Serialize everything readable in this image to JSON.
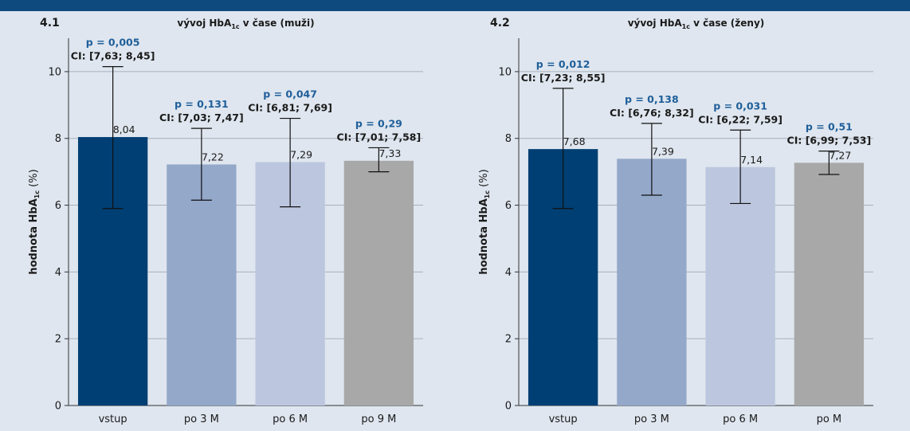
{
  "colors": {
    "background": "#dfe6ef",
    "header": "#0f4a7e",
    "p_value": "#1f5f9a",
    "grid": "#a8b0ba",
    "bars": [
      "#003f73",
      "#94a8c9",
      "#bcc7df",
      "#a8a8a8"
    ]
  },
  "chart_data": [
    {
      "type": "bar",
      "panel_id": "4.1",
      "title_main": "vývoj HbA",
      "title_sub": "1c",
      "title_rest": " v čase (muži)",
      "ylabel_main": "hodnota HbA",
      "ylabel_sub": "1c",
      "ylabel_unit": " (%)",
      "ylim": [
        0,
        11
      ],
      "yticks": [
        0,
        2,
        4,
        6,
        8,
        10
      ],
      "grid": true,
      "categories": [
        "vstup",
        "po 3 M",
        "po 6 M",
        "po 9 M"
      ],
      "values": [
        8.04,
        7.22,
        7.29,
        7.33
      ],
      "value_labels": [
        "8,04",
        "7,22",
        "7,29",
        "7,33"
      ],
      "error_low": [
        5.9,
        6.15,
        5.95,
        7.0
      ],
      "error_high": [
        10.15,
        8.3,
        8.6,
        7.72
      ],
      "p_labels": [
        "p = 0,005",
        "p = 0,131",
        "p = 0,047",
        "p = 0,29"
      ],
      "ci_labels": [
        "CI: [7,63; 8,45]",
        "CI: [7,03; 7,47]",
        "CI: [6,81; 7,69]",
        "CI: [7,01; 7,58]"
      ]
    },
    {
      "type": "bar",
      "panel_id": "4.2",
      "title_main": "vývoj HbA",
      "title_sub": "1c",
      "title_rest": " v čase (ženy)",
      "ylabel_main": "hodnota HbA",
      "ylabel_sub": "1c",
      "ylabel_unit": " (%)",
      "ylim": [
        0,
        11
      ],
      "yticks": [
        0,
        2,
        4,
        6,
        8,
        10
      ],
      "grid": true,
      "categories": [
        "vstup",
        "po 3 M",
        "po 6 M",
        "po M"
      ],
      "values": [
        7.68,
        7.39,
        7.14,
        7.27
      ],
      "value_labels": [
        "7,68",
        "7,39",
        "7,14",
        "7,27"
      ],
      "error_low": [
        5.9,
        6.3,
        6.05,
        6.92
      ],
      "error_high": [
        9.5,
        8.45,
        8.25,
        7.62
      ],
      "p_labels": [
        "p = 0,012",
        "p = 0,138",
        "p = 0,031",
        "p = 0,51"
      ],
      "ci_labels": [
        "CI: [7,23; 8,55]",
        "CI: [6,76; 8,32]",
        "CI: [6,22; 7,59]",
        "CI: [6,99; 7,53]"
      ]
    }
  ]
}
